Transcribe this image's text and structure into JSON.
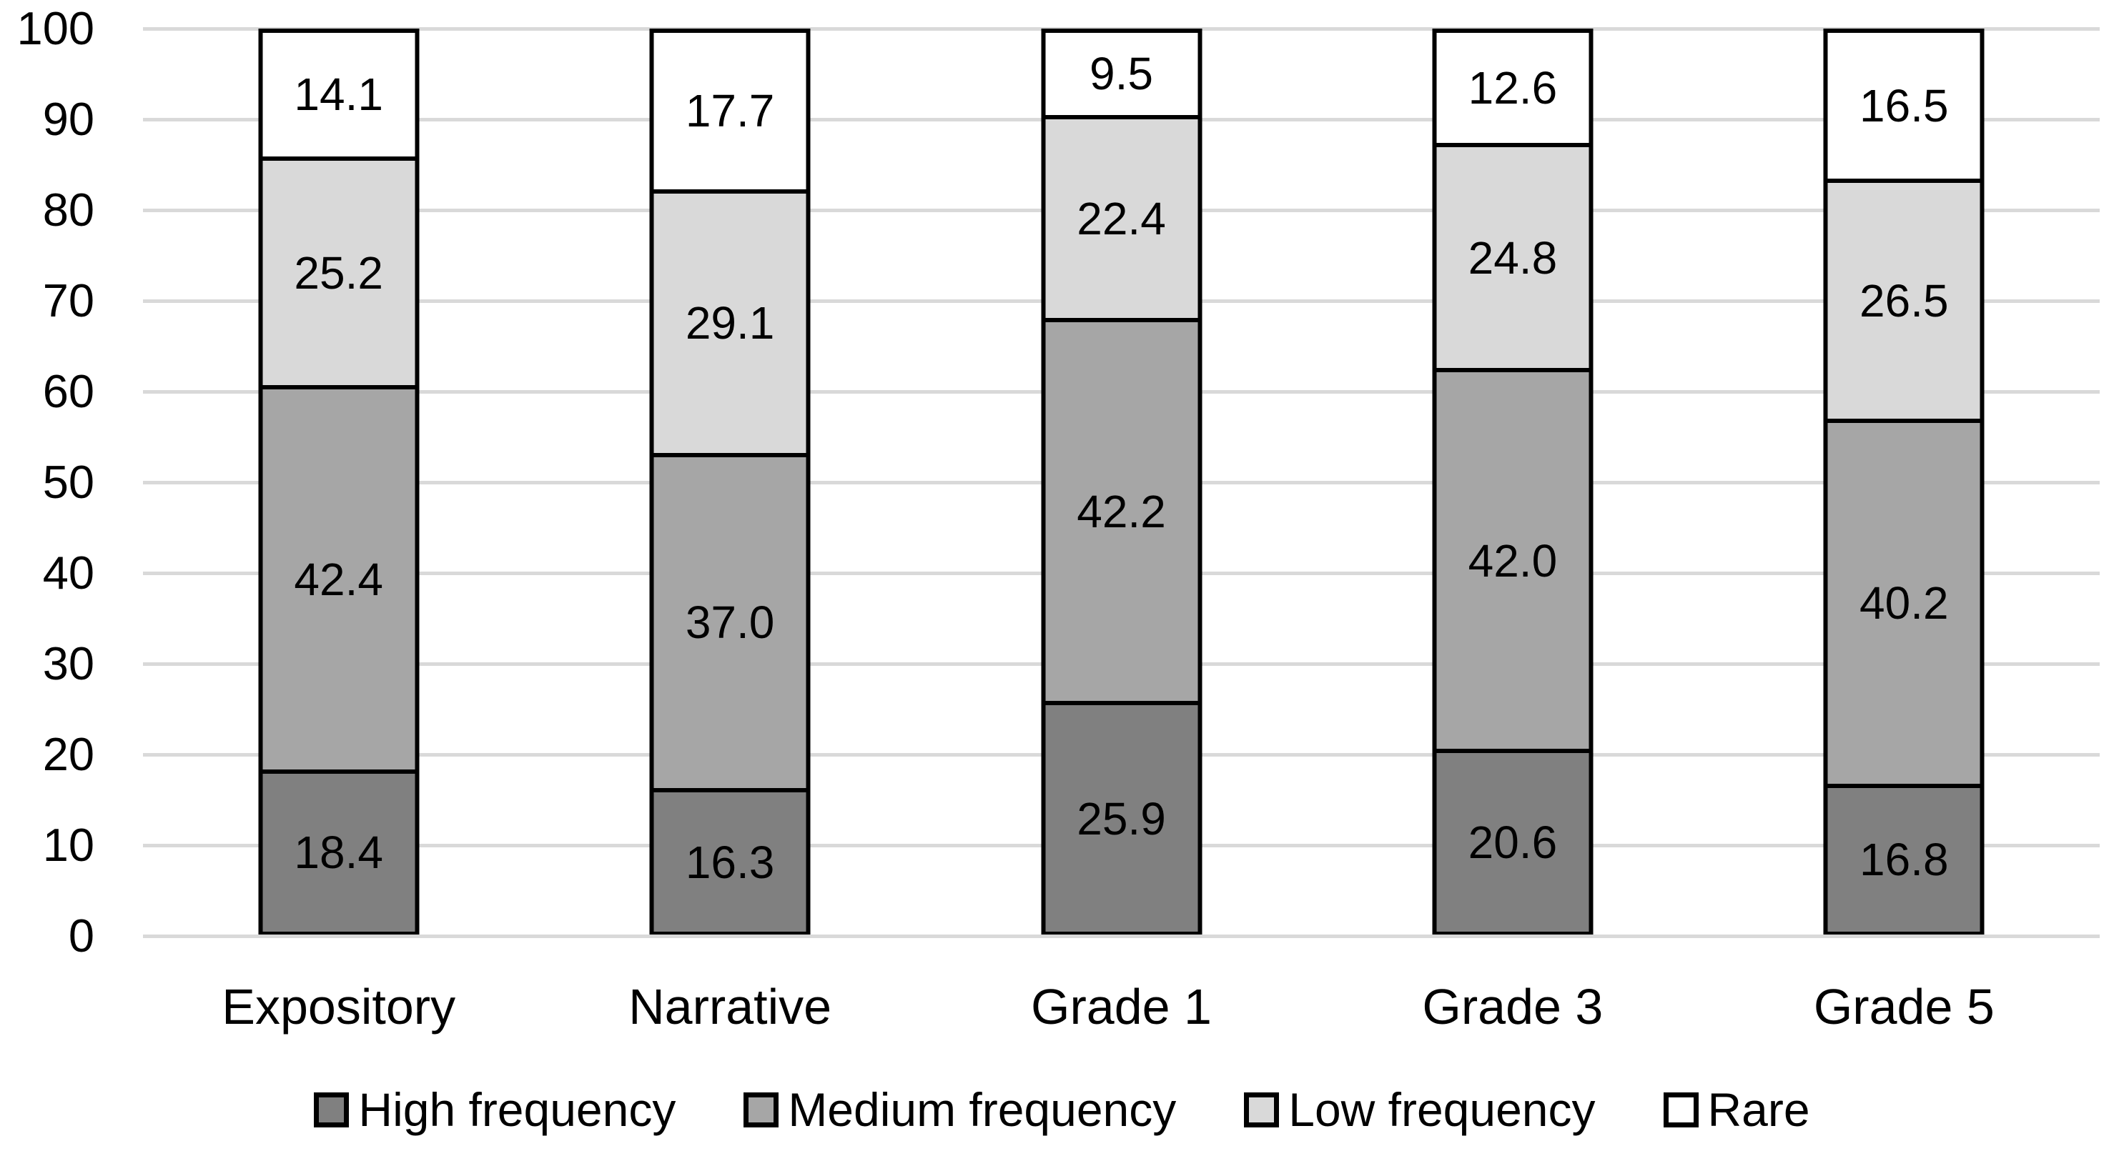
{
  "chart_data": {
    "type": "bar",
    "stacked": true,
    "orientation": "vertical",
    "title": "",
    "xlabel": "",
    "ylabel": "",
    "categories": [
      "Expository",
      "Narrative",
      "Grade 1",
      "Grade 3",
      "Grade 5"
    ],
    "series": [
      {
        "name": "High frequency",
        "color": "#808080",
        "values": [
          18.4,
          16.3,
          25.9,
          20.6,
          16.8
        ]
      },
      {
        "name": "Medium frequency",
        "color": "#a6a6a6",
        "values": [
          42.4,
          37.0,
          42.2,
          42.0,
          40.2
        ]
      },
      {
        "name": "Low frequency",
        "color": "#d9d9d9",
        "values": [
          25.2,
          29.1,
          22.4,
          24.8,
          26.5
        ]
      },
      {
        "name": "Rare",
        "color": "#ffffff",
        "values": [
          14.1,
          17.7,
          9.5,
          12.6,
          16.5
        ]
      }
    ],
    "value_labels_decimals": 1,
    "y_ticks": [
      0,
      10,
      20,
      30,
      40,
      50,
      60,
      70,
      80,
      90,
      100
    ],
    "ylim": [
      0,
      100
    ],
    "grid": true,
    "gridline_color": "#d9d9d9",
    "bar_border_color": "#000000",
    "legend_position": "bottom"
  }
}
